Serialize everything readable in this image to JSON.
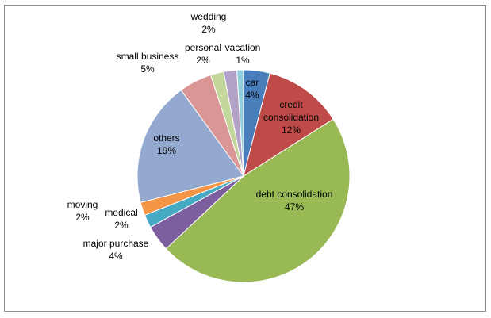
{
  "chart_data": {
    "type": "pie",
    "start_angle_deg": 0,
    "slices": [
      {
        "label": "car",
        "value": 4,
        "text": "4%",
        "color": "#4a7ebb"
      },
      {
        "label": "credit consolidation",
        "value": 12,
        "text": "12%",
        "color": "#be4b48"
      },
      {
        "label": "debt consolidation",
        "value": 47,
        "text": "47%",
        "color": "#98b954"
      },
      {
        "label": "major  purchase",
        "value": 4,
        "text": "4%",
        "color": "#7d5fa0"
      },
      {
        "label": "medical",
        "value": 2,
        "text": "2%",
        "color": "#46aac5"
      },
      {
        "label": "moving",
        "value": 2,
        "text": "2%",
        "color": "#f69545"
      },
      {
        "label": "others",
        "value": 19,
        "text": "19%",
        "color": "#93a9cf"
      },
      {
        "label": "small  business",
        "value": 5,
        "text": "5%",
        "color": "#d99694"
      },
      {
        "label": "personal",
        "value": 2,
        "text": "2%",
        "color": "#c3d69b"
      },
      {
        "label": "wedding",
        "value": 2,
        "text": "2%",
        "color": "#b3a2c7"
      },
      {
        "label": "vacation",
        "value": 1,
        "text": "1%",
        "color": "#92cddc"
      }
    ]
  }
}
